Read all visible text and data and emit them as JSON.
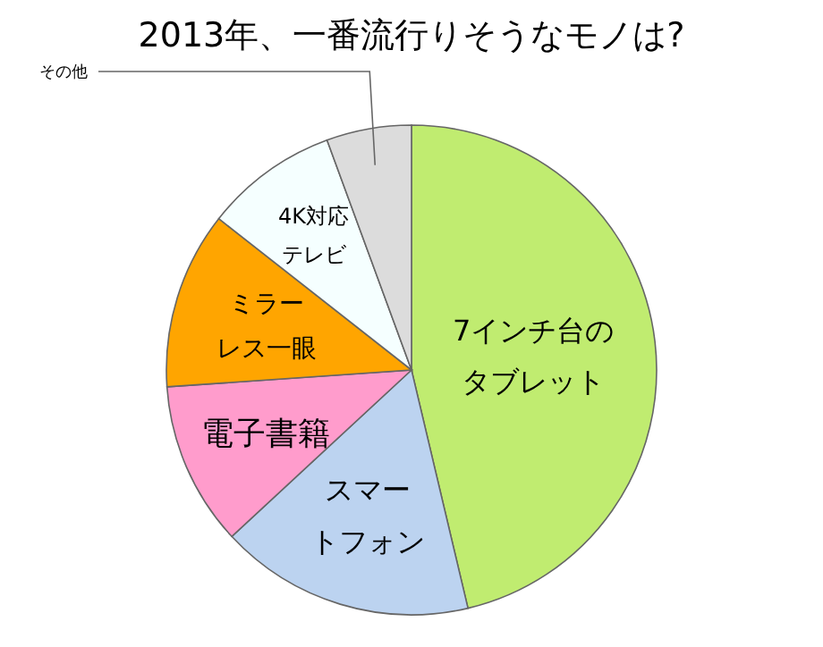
{
  "chart_data": {
    "type": "pie",
    "title": "2013年、一番流行りそうなモノは?",
    "categories": [
      "7インチ台のタブレット",
      "スマートフォン",
      "電子書籍",
      "ミラーレス一眼",
      "4K対応テレビ",
      "その他"
    ],
    "values": [
      46.3,
      16.8,
      10.8,
      11.7,
      8.8,
      5.6
    ],
    "colors": [
      "#c0ec70",
      "#bcd3f0",
      "#ff9ccc",
      "#ffa500",
      "#f5ffff",
      "#dcdcdc"
    ]
  }
}
